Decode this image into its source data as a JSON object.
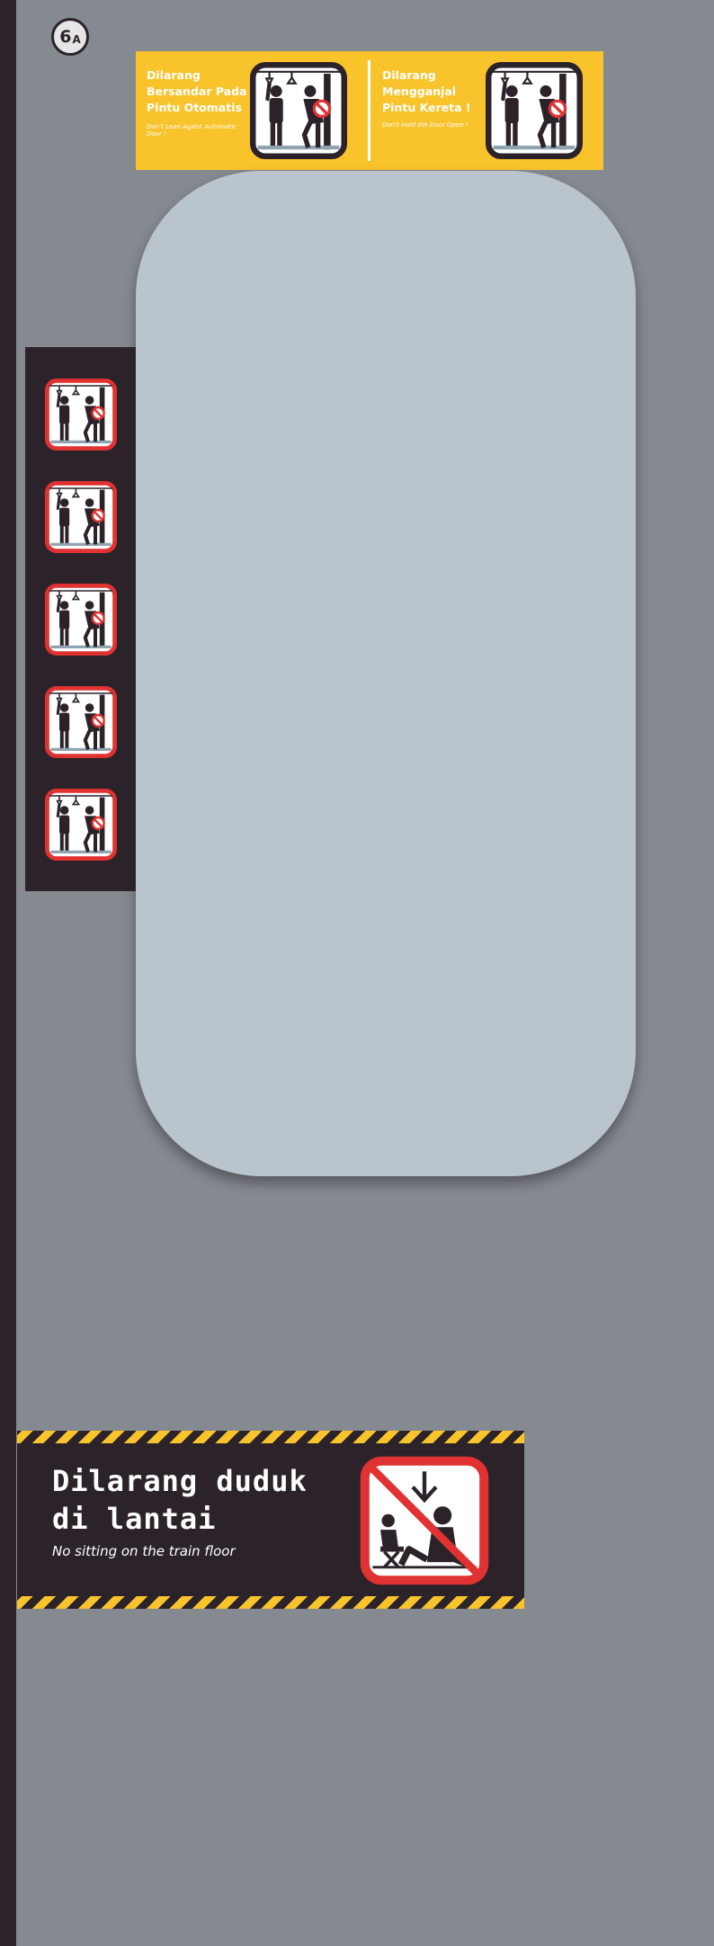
{
  "colors": {
    "door_panel": "#858990",
    "dark": "#2b2329",
    "accent_yellow": "#f9c32b",
    "prohibition_red": "#e03232",
    "window_glass": "#bac4cc",
    "white": "#ffffff"
  },
  "door_badge": {
    "number": "6",
    "letter": "A"
  },
  "yellow_banner": {
    "left_sign": {
      "title": "Dilarang Bersandar Pada Pintu Otomatis",
      "subtitle": "Don't Lean Agaist Automatic Door !",
      "icon": "no-leaning-on-door-icon"
    },
    "right_sign": {
      "title": "Dilarang Mengganjal Pintu Kereta !",
      "subtitle": "Don't Hold the Door Open !",
      "icon": "no-holding-door-icon"
    }
  },
  "window": {
    "icon": "door-window"
  },
  "icon_strip": {
    "icon": "no-leaning-on-door-icon",
    "count": 5
  },
  "floor_sign": {
    "title": "Dilarang duduk di lantai",
    "subtitle": "No sitting on the train floor",
    "icon": "no-sitting-on-floor-icon"
  }
}
